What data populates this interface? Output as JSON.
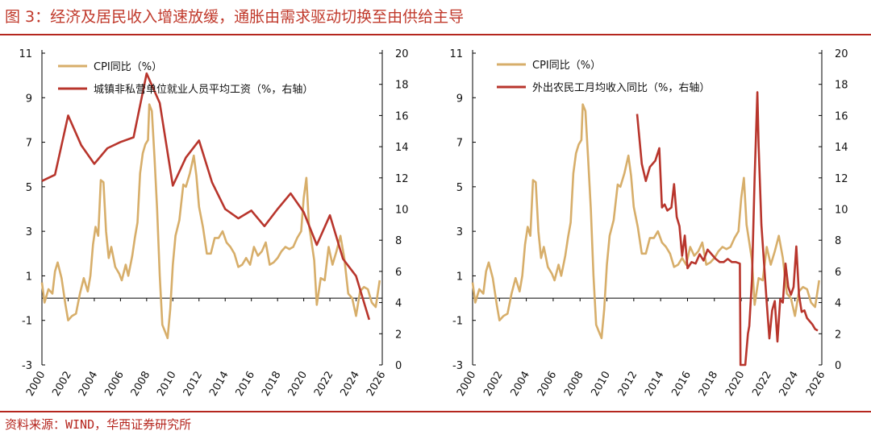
{
  "title": "图 3：经济及居民收入增速放缓，通胀由需求驱动切换至由供给主导",
  "source": "资料来源：WIND，华西证券研究所",
  "colors": {
    "cpi": "#d7ae6a",
    "wage": "#b8352c",
    "rule": "#b5261e"
  },
  "chart_data": [
    {
      "type": "line",
      "x_ticks": [
        "2000",
        "2002",
        "2004",
        "2006",
        "2008",
        "2010",
        "2012",
        "2014",
        "2016",
        "2018",
        "2020",
        "2022",
        "2024",
        "2026"
      ],
      "xlim": [
        2000,
        2026
      ],
      "ylim_left": [
        -3,
        11
      ],
      "yticks_left": [
        "11",
        "9",
        "7",
        "5",
        "3",
        "1",
        "-1",
        "-3"
      ],
      "ylim_right": [
        0,
        20
      ],
      "yticks_right": [
        "20",
        "18",
        "16",
        "14",
        "12",
        "10",
        "8",
        "6",
        "4",
        "2",
        "0"
      ],
      "legend": [
        "CPI同比（%）",
        "城镇非私营单位就业人员平均工资（%，右轴）"
      ],
      "series": [
        {
          "name": "CPI同比（%）",
          "axis": "left",
          "x": [
            2000.0,
            2000.2,
            2000.5,
            2000.8,
            2001.0,
            2001.2,
            2001.5,
            2001.8,
            2002.0,
            2002.3,
            2002.6,
            2002.9,
            2003.2,
            2003.5,
            2003.7,
            2003.9,
            2004.1,
            2004.3,
            2004.5,
            2004.7,
            2004.9,
            2005.1,
            2005.3,
            2005.6,
            2005.9,
            2006.1,
            2006.4,
            2006.6,
            2006.9,
            2007.1,
            2007.3,
            2007.5,
            2007.7,
            2007.9,
            2008.1,
            2008.2,
            2008.4,
            2008.6,
            2008.8,
            2009.0,
            2009.2,
            2009.4,
            2009.6,
            2009.8,
            2010.0,
            2010.2,
            2010.5,
            2010.8,
            2011.0,
            2011.3,
            2011.6,
            2011.8,
            2012.0,
            2012.3,
            2012.6,
            2012.9,
            2013.2,
            2013.5,
            2013.8,
            2014.1,
            2014.4,
            2014.7,
            2015.0,
            2015.3,
            2015.6,
            2015.9,
            2016.2,
            2016.5,
            2016.8,
            2017.1,
            2017.4,
            2017.7,
            2018.0,
            2018.3,
            2018.6,
            2018.9,
            2019.2,
            2019.5,
            2019.8,
            2020.0,
            2020.2,
            2020.4,
            2020.6,
            2020.8,
            2021.0,
            2021.3,
            2021.6,
            2021.9,
            2022.2,
            2022.5,
            2022.8,
            2023.1,
            2023.4,
            2023.7,
            2024.0,
            2024.3,
            2024.6,
            2024.9,
            2025.2,
            2025.5,
            2025.8
          ],
          "values": [
            0.7,
            -0.2,
            0.4,
            0.2,
            1.2,
            1.6,
            0.9,
            -0.3,
            -1.0,
            -0.8,
            -0.7,
            0.2,
            0.9,
            0.3,
            1.0,
            2.4,
            3.2,
            2.8,
            5.3,
            5.2,
            3.0,
            1.8,
            2.3,
            1.4,
            1.1,
            0.8,
            1.5,
            1.0,
            1.9,
            2.7,
            3.4,
            5.6,
            6.5,
            6.9,
            7.1,
            8.7,
            8.4,
            6.3,
            4.0,
            1.0,
            -1.2,
            -1.5,
            -1.8,
            -0.5,
            1.5,
            2.8,
            3.5,
            5.1,
            5.0,
            5.6,
            6.4,
            5.5,
            4.1,
            3.2,
            2.0,
            2.0,
            2.7,
            2.7,
            3.0,
            2.5,
            2.3,
            2.0,
            1.4,
            1.5,
            1.8,
            1.5,
            2.3,
            1.9,
            2.1,
            2.5,
            1.5,
            1.6,
            1.8,
            2.1,
            2.3,
            2.2,
            2.3,
            2.7,
            3.0,
            4.5,
            5.4,
            3.3,
            2.5,
            1.7,
            -0.3,
            0.9,
            0.8,
            2.3,
            1.5,
            2.1,
            2.8,
            1.8,
            0.2,
            0.0,
            -0.8,
            0.3,
            0.5,
            0.4,
            -0.2,
            -0.4,
            0.8
          ]
        },
        {
          "name": "城镇非私营单位就业人员平均工资（%，右轴）",
          "axis": "right",
          "x": [
            2000,
            2001,
            2002,
            2003,
            2004,
            2005,
            2006,
            2007,
            2008,
            2009,
            2010,
            2011,
            2012,
            2013,
            2014,
            2015,
            2016,
            2017,
            2018,
            2019,
            2020,
            2021,
            2022,
            2023,
            2024,
            2025
          ],
          "values": [
            11.8,
            12.2,
            16.0,
            14.1,
            12.9,
            13.9,
            14.3,
            14.6,
            18.7,
            16.8,
            11.5,
            13.3,
            14.4,
            11.7,
            10.0,
            9.4,
            9.9,
            8.9,
            10.0,
            11.0,
            9.8,
            7.7,
            9.6,
            6.8,
            5.7,
            2.9
          ]
        }
      ]
    },
    {
      "type": "line",
      "x_ticks": [
        "2000",
        "2002",
        "2004",
        "2006",
        "2008",
        "2010",
        "2012",
        "2014",
        "2016",
        "2018",
        "2020",
        "2022",
        "2024",
        "2026"
      ],
      "xlim": [
        2000,
        2026
      ],
      "ylim_left": [
        -3,
        11
      ],
      "yticks_left": [
        "11",
        "9",
        "7",
        "5",
        "3",
        "1",
        "-1",
        "-3"
      ],
      "ylim_right": [
        0,
        20
      ],
      "yticks_right": [
        "20",
        "18",
        "16",
        "14",
        "12",
        "10",
        "8",
        "6",
        "4",
        "2",
        "0"
      ],
      "legend": [
        "CPI同比（%）",
        "外出农民工月均收入同比（%，右轴）"
      ],
      "series": [
        {
          "name": "CPI同比（%）",
          "axis": "left",
          "x": [
            2000.0,
            2000.2,
            2000.5,
            2000.8,
            2001.0,
            2001.2,
            2001.5,
            2001.8,
            2002.0,
            2002.3,
            2002.6,
            2002.9,
            2003.2,
            2003.5,
            2003.7,
            2003.9,
            2004.1,
            2004.3,
            2004.5,
            2004.7,
            2004.9,
            2005.1,
            2005.3,
            2005.6,
            2005.9,
            2006.1,
            2006.4,
            2006.6,
            2006.9,
            2007.1,
            2007.3,
            2007.5,
            2007.7,
            2007.9,
            2008.1,
            2008.2,
            2008.4,
            2008.6,
            2008.8,
            2009.0,
            2009.2,
            2009.4,
            2009.6,
            2009.8,
            2010.0,
            2010.2,
            2010.5,
            2010.8,
            2011.0,
            2011.3,
            2011.6,
            2011.8,
            2012.0,
            2012.3,
            2012.6,
            2012.9,
            2013.2,
            2013.5,
            2013.8,
            2014.1,
            2014.4,
            2014.7,
            2015.0,
            2015.3,
            2015.6,
            2015.9,
            2016.2,
            2016.5,
            2016.8,
            2017.1,
            2017.4,
            2017.7,
            2018.0,
            2018.3,
            2018.6,
            2018.9,
            2019.2,
            2019.5,
            2019.8,
            2020.0,
            2020.2,
            2020.4,
            2020.6,
            2020.8,
            2021.0,
            2021.3,
            2021.6,
            2021.9,
            2022.2,
            2022.5,
            2022.8,
            2023.1,
            2023.4,
            2023.7,
            2024.0,
            2024.3,
            2024.6,
            2024.9,
            2025.2,
            2025.5,
            2025.8
          ],
          "values": [
            0.7,
            -0.2,
            0.4,
            0.2,
            1.2,
            1.6,
            0.9,
            -0.3,
            -1.0,
            -0.8,
            -0.7,
            0.2,
            0.9,
            0.3,
            1.0,
            2.4,
            3.2,
            2.8,
            5.3,
            5.2,
            3.0,
            1.8,
            2.3,
            1.4,
            1.1,
            0.8,
            1.5,
            1.0,
            1.9,
            2.7,
            3.4,
            5.6,
            6.5,
            6.9,
            7.1,
            8.7,
            8.4,
            6.3,
            4.0,
            1.0,
            -1.2,
            -1.5,
            -1.8,
            -0.5,
            1.5,
            2.8,
            3.5,
            5.1,
            5.0,
            5.6,
            6.4,
            5.5,
            4.1,
            3.2,
            2.0,
            2.0,
            2.7,
            2.7,
            3.0,
            2.5,
            2.3,
            2.0,
            1.4,
            1.5,
            1.8,
            1.5,
            2.3,
            1.9,
            2.1,
            2.5,
            1.5,
            1.6,
            1.8,
            2.1,
            2.3,
            2.2,
            2.3,
            2.7,
            3.0,
            4.5,
            5.4,
            3.3,
            2.5,
            1.7,
            -0.3,
            0.9,
            0.8,
            2.3,
            1.5,
            2.1,
            2.8,
            1.8,
            0.2,
            0.0,
            -0.8,
            0.3,
            0.5,
            0.4,
            -0.2,
            -0.4,
            0.8
          ]
        },
        {
          "name": "外出农民工月均收入同比（%，右轴）",
          "axis": "right",
          "x": [
            2012.25,
            2012.6,
            2012.9,
            2013.2,
            2013.6,
            2013.9,
            2014.1,
            2014.3,
            2014.5,
            2014.8,
            2015.0,
            2015.2,
            2015.4,
            2015.6,
            2015.8,
            2016.0,
            2016.3,
            2016.6,
            2016.9,
            2017.2,
            2017.5,
            2017.8,
            2018.1,
            2018.4,
            2018.7,
            2019.0,
            2019.3,
            2019.6,
            2019.9,
            2019.95,
            2020.05,
            2020.3,
            2020.5,
            2020.6,
            2020.8,
            2021.0,
            2021.2,
            2021.3,
            2021.5,
            2021.7,
            2021.9,
            2022.1,
            2022.3,
            2022.5,
            2022.7,
            2022.9,
            2023.1,
            2023.3,
            2023.5,
            2023.7,
            2023.9,
            2024.1,
            2024.3,
            2024.5,
            2024.7,
            2024.9,
            2025.1,
            2025.3,
            2025.5,
            2025.7
          ],
          "values": [
            16.1,
            12.9,
            11.8,
            12.7,
            13.1,
            13.9,
            10.1,
            10.3,
            9.9,
            10.1,
            11.6,
            9.5,
            8.9,
            7.0,
            8.3,
            6.2,
            6.6,
            6.5,
            7.1,
            6.7,
            7.4,
            7.1,
            6.8,
            6.6,
            6.6,
            6.8,
            6.6,
            6.6,
            6.5,
            0.0,
            0.0,
            0.0,
            2.0,
            2.5,
            5.5,
            12.0,
            17.5,
            14.0,
            9.0,
            6.5,
            4.0,
            1.7,
            3.5,
            4.1,
            1.5,
            4.2,
            4.0,
            6.5,
            5.0,
            4.5,
            5.0,
            7.6,
            4.5,
            3.4,
            3.5,
            3.0,
            2.8,
            2.6,
            2.3,
            2.2
          ]
        }
      ]
    }
  ]
}
